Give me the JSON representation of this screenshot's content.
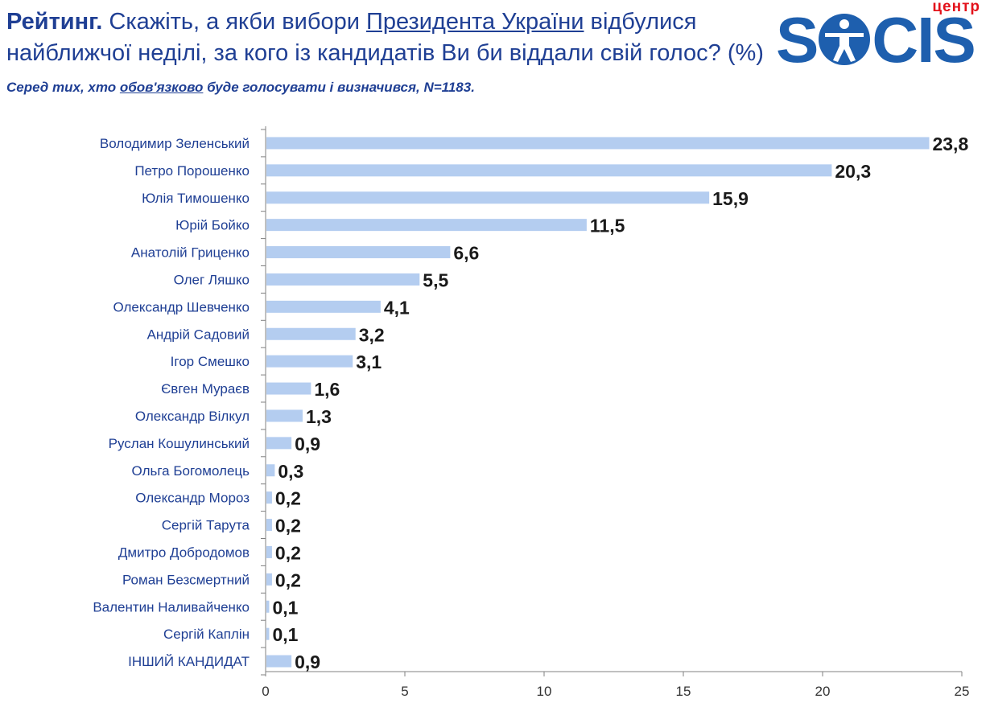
{
  "header": {
    "lead": "Рейтинг.",
    "q1": " Скажіть, а якби вибори ",
    "q_ul": "Президента України",
    "q2": " відбулися найближчої неділі, за кого із кандидатів Ви би віддали свій голос? (%) ",
    "note1": "Серед тих, хто ",
    "note_ul": "обов'язково",
    "note2": " буде голосувати і визначився, N=1183."
  },
  "logo": {
    "tag": "центр",
    "word_s": "S",
    "word_rest": "CIS"
  },
  "colors": {
    "bar": "#b4cdf0",
    "axis": "#808080",
    "label": "#1f3f94",
    "value": "#1a1a1a",
    "title": "#1f3f94",
    "logo_blue": "#1e5fae",
    "logo_red": "#e3121b"
  },
  "chart_data": {
    "type": "bar",
    "orientation": "horizontal",
    "categories": [
      "Володимир Зеленський",
      "Петро Порошенко",
      "Юлія Тимошенко",
      "Юрій Бойко",
      "Анатолій Гриценко",
      "Олег Ляшко",
      "Олександр Шевченко",
      "Андрій Садовий",
      "Ігор Смешко",
      "Євген Мураєв",
      "Олександр Вілкул",
      "Руслан Кошулинський",
      "Ольга Богомолець",
      "Олександр Мороз",
      "Сергій Тарута",
      "Дмитро Добродомов",
      "Роман Безсмертний",
      "Валентин Наливайченко",
      "Сергій Каплін",
      "ІНШИЙ КАНДИДАТ"
    ],
    "values": [
      23.8,
      20.3,
      15.9,
      11.5,
      6.6,
      5.5,
      4.1,
      3.2,
      3.1,
      1.6,
      1.3,
      0.9,
      0.3,
      0.2,
      0.2,
      0.2,
      0.2,
      0.1,
      0.1,
      0.9
    ],
    "value_labels": [
      "23,8",
      "20,3",
      "15,9",
      "11,5",
      "6,6",
      "5,5",
      "4,1",
      "3,2",
      "3,1",
      "1,6",
      "1,3",
      "0,9",
      "0,3",
      "0,2",
      "0,2",
      "0,2",
      "0,2",
      "0,1",
      "0,1",
      "0,9"
    ],
    "xlim": [
      0,
      25
    ],
    "xticks": [
      0,
      5,
      10,
      15,
      20,
      25
    ],
    "grid": false,
    "legend": "none"
  }
}
